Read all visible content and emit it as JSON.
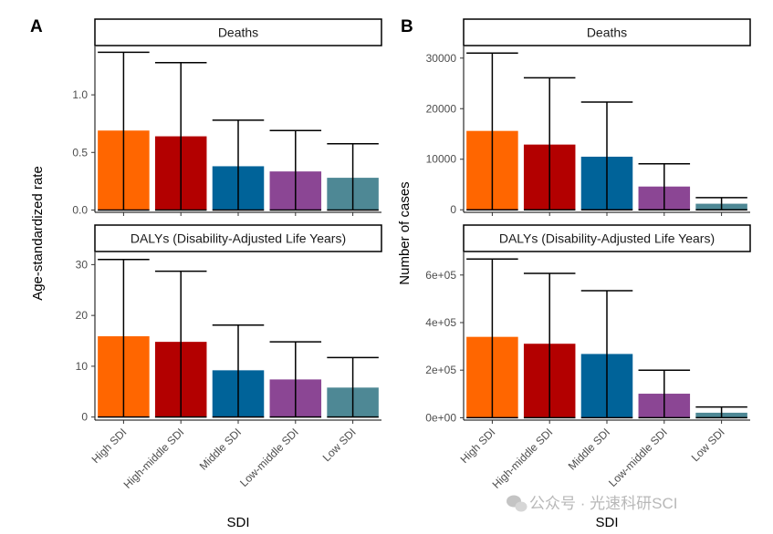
{
  "panel_letters": [
    "A",
    "B"
  ],
  "colors": {
    "bar": [
      "#FF6600",
      "#B30000",
      "#006399",
      "#8B4694",
      "#4E8895"
    ]
  },
  "watermark": {
    "text": "公众号 · 光速科研SCI",
    "icon": "wechat-icon"
  },
  "chart_data": [
    {
      "panel": "A",
      "facet": "Deaths",
      "type": "bar",
      "categories": [
        "High SDI",
        "High-middle SDI",
        "Middle SDI",
        "Low-middle SDI",
        "Low SDI"
      ],
      "values": [
        0.69,
        0.64,
        0.38,
        0.335,
        0.28
      ],
      "error_lower": [
        0,
        0,
        0,
        0,
        0
      ],
      "error_upper": [
        1.37,
        1.28,
        0.78,
        0.69,
        0.575
      ],
      "ylabel": "Age-standardized rate",
      "xlabel": "SDI",
      "ylim": [
        -0.02,
        1.42
      ],
      "yticks": [
        0.0,
        0.5,
        1.0
      ],
      "ytick_labels": [
        "0.0",
        "0.5",
        "1.0"
      ]
    },
    {
      "panel": "A",
      "facet": "DALYs (Disability-Adjusted Life Years)",
      "type": "bar",
      "categories": [
        "High SDI",
        "High-middle SDI",
        "Middle SDI",
        "Low-middle SDI",
        "Low SDI"
      ],
      "values": [
        15.9,
        14.8,
        9.2,
        7.4,
        5.8
      ],
      "error_lower": [
        0,
        0,
        0,
        0,
        0
      ],
      "error_upper": [
        31.0,
        28.7,
        18.1,
        14.8,
        11.7
      ],
      "ylabel": "Age-standardized rate",
      "xlabel": "SDI",
      "ylim": [
        -0.6,
        32.4
      ],
      "yticks": [
        0,
        10,
        20,
        30
      ],
      "ytick_labels": [
        "0",
        "10",
        "20",
        "30"
      ]
    },
    {
      "panel": "B",
      "facet": "Deaths",
      "type": "bar",
      "categories": [
        "High SDI",
        "High-middle SDI",
        "Middle SDI",
        "Low-middle SDI",
        "Low SDI"
      ],
      "values": [
        15600,
        12900,
        10500,
        4600,
        1200
      ],
      "error_lower": [
        0,
        0,
        0,
        0,
        0
      ],
      "error_upper": [
        31000,
        26100,
        21300,
        9100,
        2400
      ],
      "ylabel": "Number of cases",
      "xlabel": "SDI",
      "ylim": [
        -500,
        32300
      ],
      "yticks": [
        0,
        10000,
        20000,
        30000
      ],
      "ytick_labels": [
        "0",
        "10000",
        "20000",
        "30000"
      ]
    },
    {
      "panel": "B",
      "facet": "DALYs (Disability-Adjusted Life Years)",
      "type": "bar",
      "categories": [
        "High SDI",
        "High-middle SDI",
        "Middle SDI",
        "Low-middle SDI",
        "Low SDI"
      ],
      "values": [
        340000,
        311000,
        268000,
        101000,
        21000
      ],
      "error_lower": [
        0,
        0,
        0,
        0,
        0
      ],
      "error_upper": [
        667000,
        607000,
        534000,
        200000,
        45000
      ],
      "ylabel": "Number of cases",
      "xlabel": "SDI",
      "ylim": [
        -10000,
        695000
      ],
      "yticks": [
        0,
        200000,
        400000,
        600000
      ],
      "ytick_labels": [
        "0e+00",
        "2e+05",
        "4e+05",
        "6e+05"
      ]
    }
  ]
}
